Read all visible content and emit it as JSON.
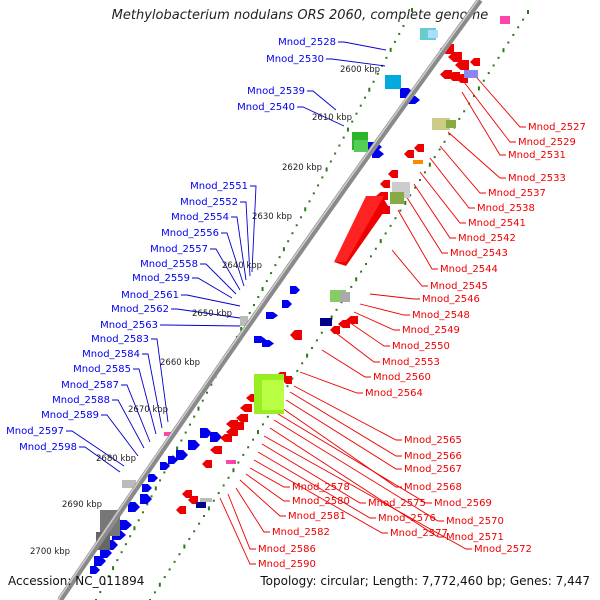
{
  "title": "Methylobacterium nodulans ORS 2060, complete genome",
  "accession": "Accession: NC_011894",
  "summary": "Topology: circular; Length: 7,772,460 bp; Genes: 7,447",
  "colors": {
    "forward": "#0000ee",
    "reverse": "#ee0000",
    "leader_forward": "#0000cc",
    "leader_reverse": "#ee0000",
    "tick": "#2a7a1a",
    "backbone": "#888888"
  },
  "scale_labels": [
    "2600 kbp",
    "2610 kbp",
    "2620 kbp",
    "2630 kbp",
    "2640 kbp",
    "2650 kbp",
    "2660 kbp",
    "2670 kbp",
    "2680 kbp",
    "2690 kbp",
    "2700 kbp"
  ],
  "left_labels": [
    "Mnod_2528",
    "Mnod_2530",
    "Mnod_2539",
    "Mnod_2540",
    "Mnod_2551",
    "Mnod_2552",
    "Mnod_2554",
    "Mnod_2556",
    "Mnod_2557",
    "Mnod_2558",
    "Mnod_2559",
    "Mnod_2561",
    "Mnod_2562",
    "Mnod_2563",
    "Mnod_2583",
    "Mnod_2584",
    "Mnod_2585",
    "Mnod_2587",
    "Mnod_2588",
    "Mnod_2589",
    "Mnod_2597",
    "Mnod_2598"
  ],
  "right_labels": [
    "Mnod_2527",
    "Mnod_2529",
    "Mnod_2531",
    "Mnod_2533",
    "Mnod_2537",
    "Mnod_2538",
    "Mnod_2541",
    "Mnod_2542",
    "Mnod_2543",
    "Mnod_2544",
    "Mnod_2545",
    "Mnod_2546",
    "Mnod_2548",
    "Mnod_2549",
    "Mnod_2550",
    "Mnod_2553",
    "Mnod_2560",
    "Mnod_2564",
    "Mnod_2565",
    "Mnod_2566",
    "Mnod_2567",
    "Mnod_2568",
    "Mnod_2569",
    "Mnod_2570",
    "Mnod_2571",
    "Mnod_2572",
    "Mnod_2575",
    "Mnod_2576",
    "Mnod_2577",
    "Mnod_2578",
    "Mnod_2580",
    "Mnod_2581",
    "Mnod_2582",
    "Mnod_2586",
    "Mnod_2590"
  ]
}
